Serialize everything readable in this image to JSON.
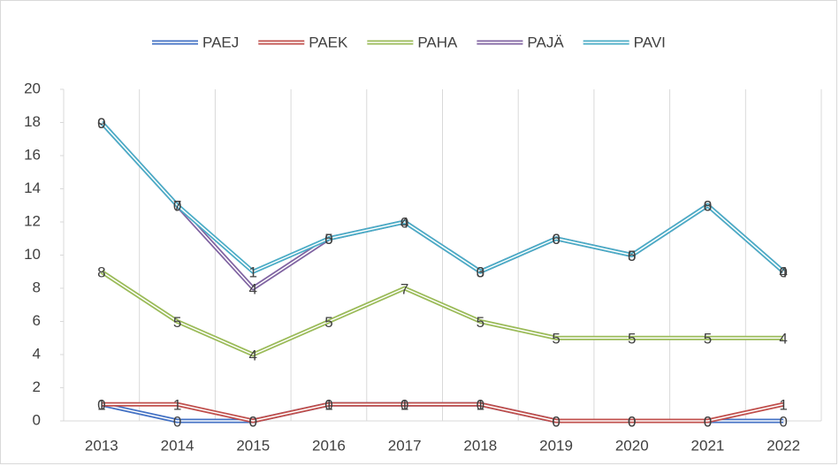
{
  "chart_data": {
    "type": "line",
    "stacked": true,
    "categories": [
      "2013",
      "2014",
      "2015",
      "2016",
      "2017",
      "2018",
      "2019",
      "2020",
      "2021",
      "2022"
    ],
    "series": [
      {
        "name": "PAEJ",
        "color": "#4472c4",
        "values": [
          1,
          0,
          0,
          1,
          1,
          1,
          0,
          0,
          0,
          0
        ]
      },
      {
        "name": "PAEK",
        "color": "#c0504d",
        "values": [
          0,
          1,
          0,
          0,
          0,
          0,
          0,
          0,
          0,
          1
        ]
      },
      {
        "name": "PAHA",
        "color": "#9bbb59",
        "values": [
          8,
          5,
          4,
          5,
          7,
          5,
          5,
          5,
          5,
          4
        ]
      },
      {
        "name": "PAJÄ",
        "color": "#8064a2",
        "values": [
          9,
          7,
          4,
          5,
          4,
          3,
          6,
          5,
          8,
          4
        ]
      },
      {
        "name": "PAVI",
        "color": "#4bacc6",
        "values": [
          0,
          0,
          1,
          0,
          0,
          0,
          0,
          0,
          0,
          0
        ]
      }
    ],
    "ylim": [
      0,
      20
    ],
    "yticks": [
      0,
      2,
      4,
      6,
      8,
      10,
      12,
      14,
      16,
      18,
      20
    ],
    "legend": "top",
    "data_labels": true
  }
}
